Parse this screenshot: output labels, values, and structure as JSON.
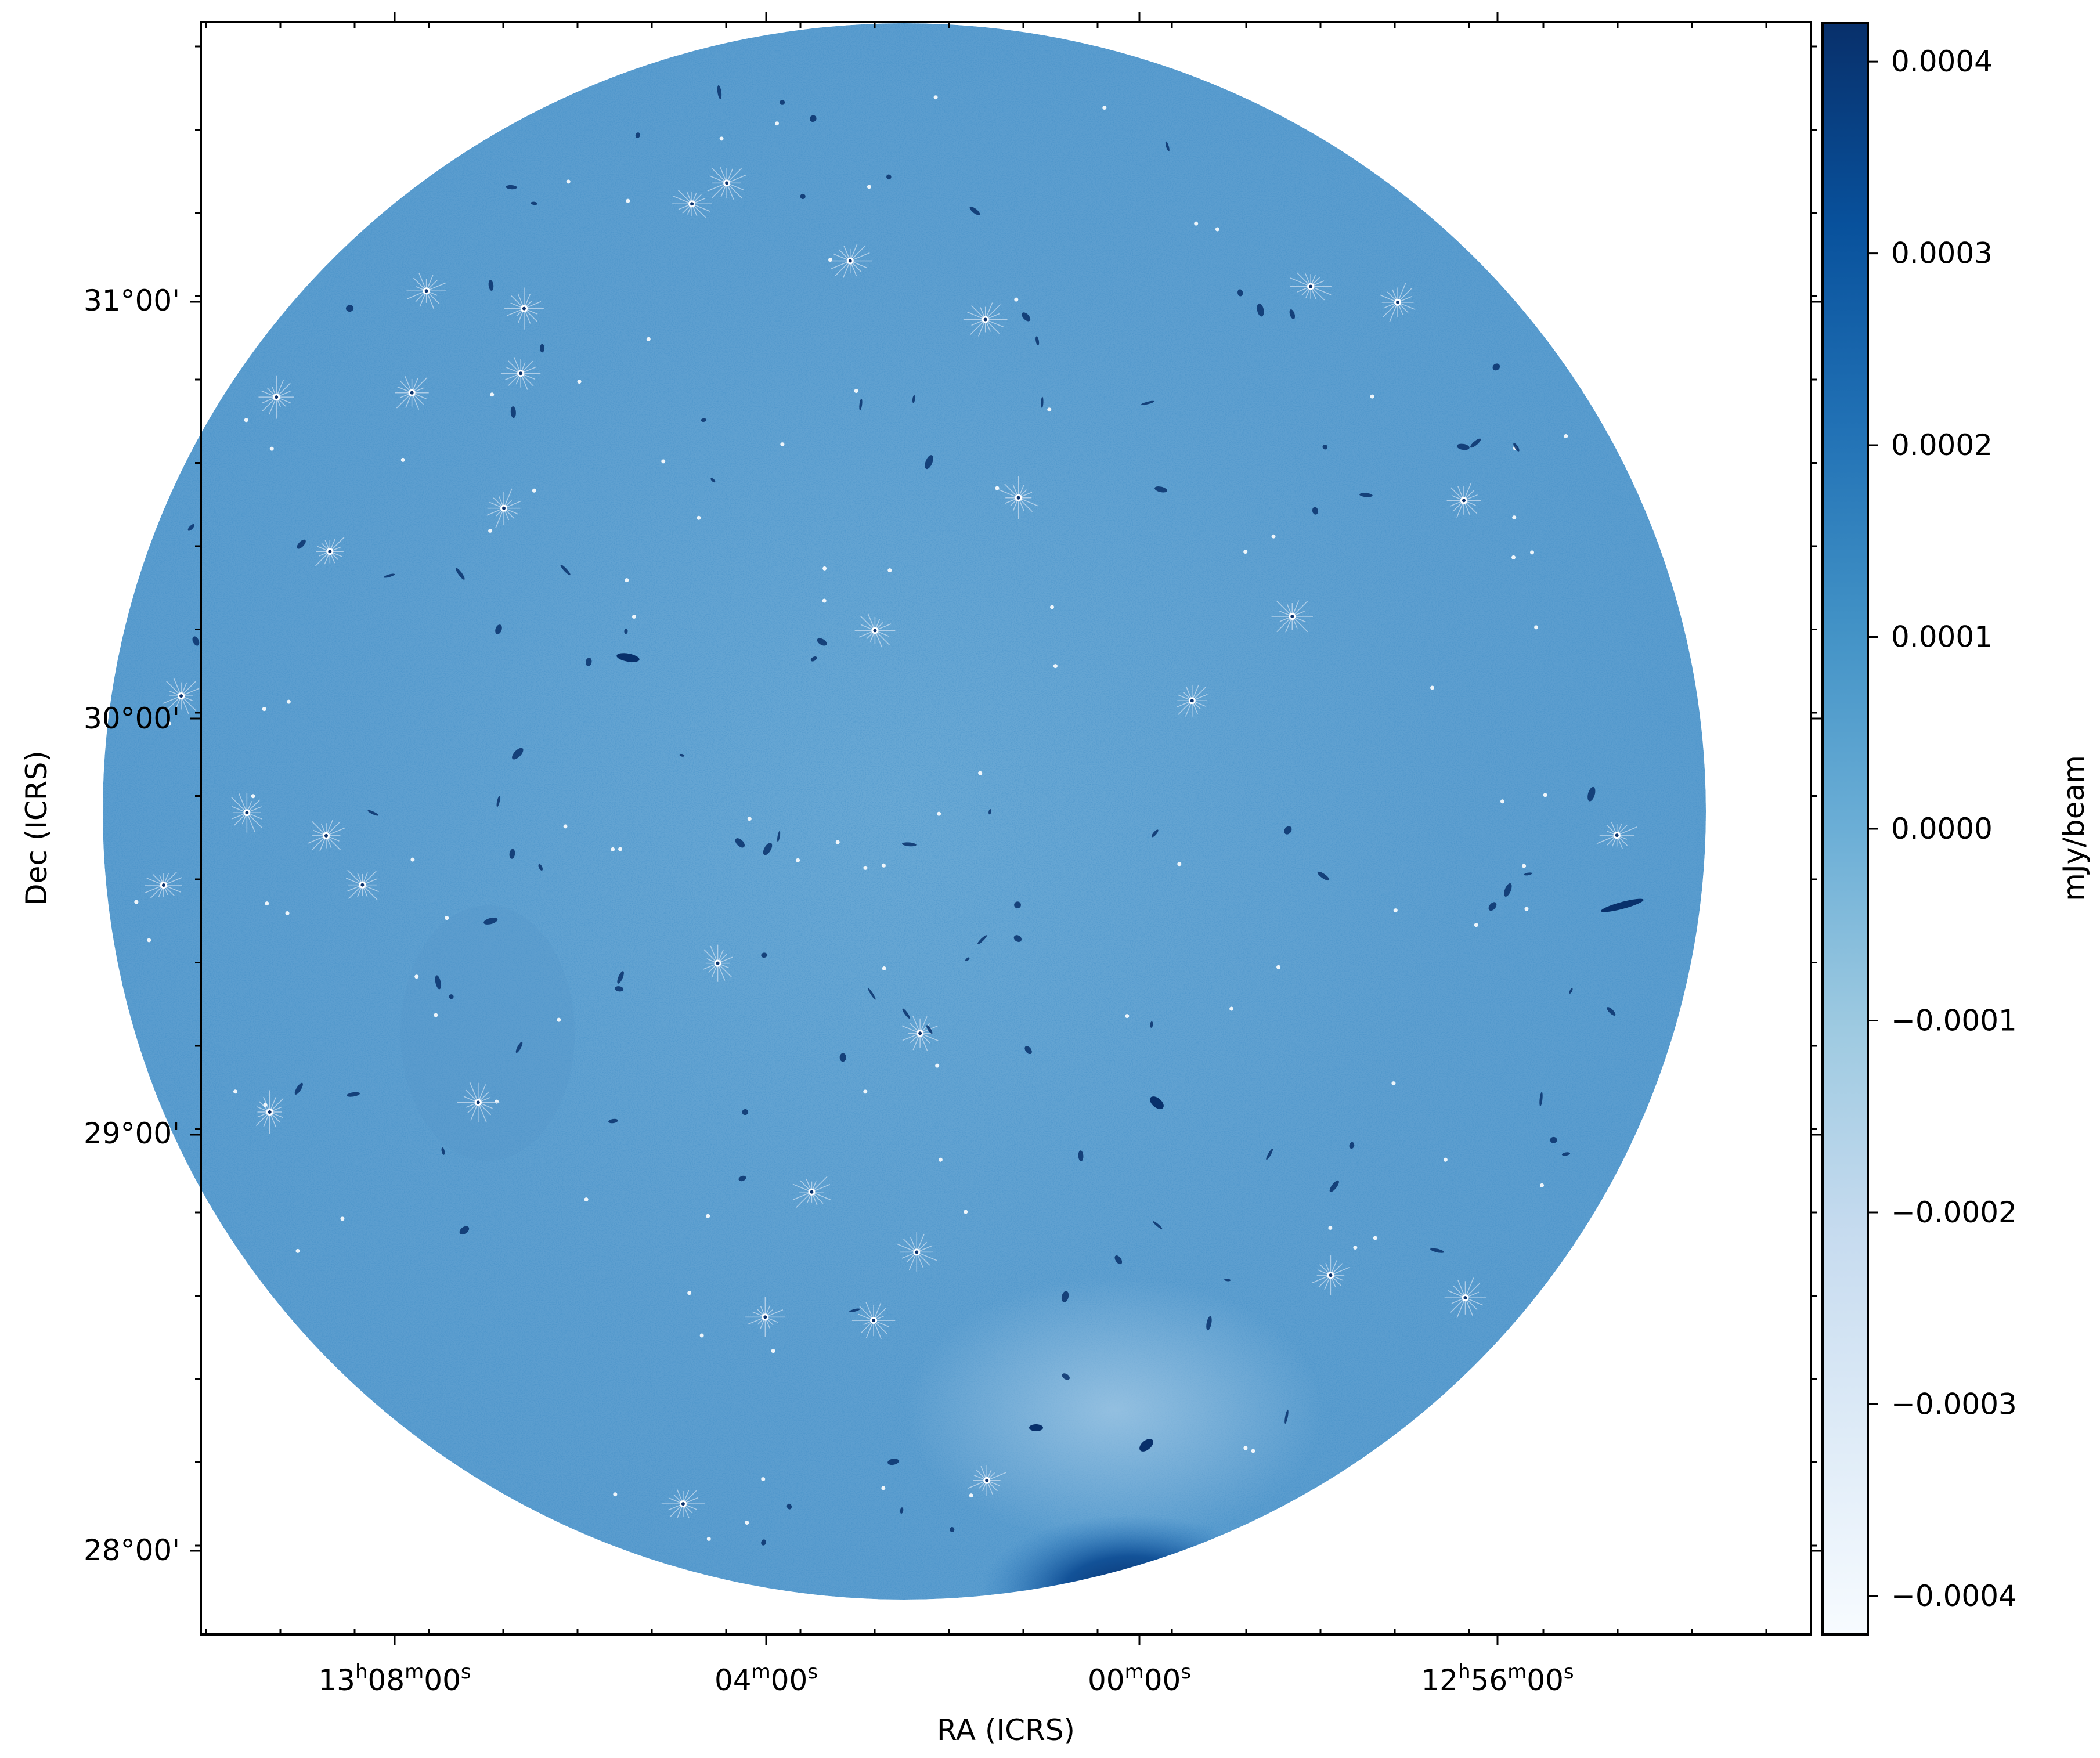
{
  "chart_data": {
    "type": "heatmap",
    "title": "",
    "xlabel": "RA (ICRS)",
    "ylabel": "Dec (ICRS)",
    "colorbar_label": "mJy/beam",
    "colormap": "Blues",
    "x_ticks": [
      {
        "label_parts": [
          "13",
          "h",
          "08",
          "m",
          "00",
          "s"
        ],
        "value": 13.1333
      },
      {
        "label_parts": [
          "04",
          "m",
          "00",
          "s"
        ],
        "value": 13.0667
      },
      {
        "label_parts": [
          "00",
          "m",
          "00",
          "s"
        ],
        "value": 13.0
      },
      {
        "label_parts": [
          "12",
          "h",
          "56",
          "m",
          "00",
          "s"
        ],
        "value": 12.9333
      }
    ],
    "y_ticks": [
      {
        "label": "28°00'",
        "value": 28.0
      },
      {
        "label": "29°00'",
        "value": 29.0
      },
      {
        "label": "30°00'",
        "value": 30.0
      },
      {
        "label": "31°00'",
        "value": 31.0
      }
    ],
    "colorbar_ticks": [
      {
        "label": "0.0004",
        "value": 0.0004
      },
      {
        "label": "0.0003",
        "value": 0.0003
      },
      {
        "label": "0.0002",
        "value": 0.0002
      },
      {
        "label": "0.0001",
        "value": 0.0001
      },
      {
        "label": "0.0000",
        "value": 0.0
      },
      {
        "label": "−0.0001",
        "value": -0.0001
      },
      {
        "label": "−0.0002",
        "value": -0.0002
      },
      {
        "label": "−0.0003",
        "value": -0.0003
      },
      {
        "label": "−0.0004",
        "value": -0.0004
      }
    ],
    "colorbar_range": [
      -0.00042,
      0.00042
    ],
    "colors": {
      "field": "#6aaad6",
      "field_dark": "#4a8fc8",
      "bright_region": "#08306b",
      "faint_region": "#a6cbe6",
      "source": "#ffffff",
      "cmap_low": "#f7fbff",
      "cmap_mid": "#6aaed6",
      "cmap_high": "#08306b"
    }
  }
}
